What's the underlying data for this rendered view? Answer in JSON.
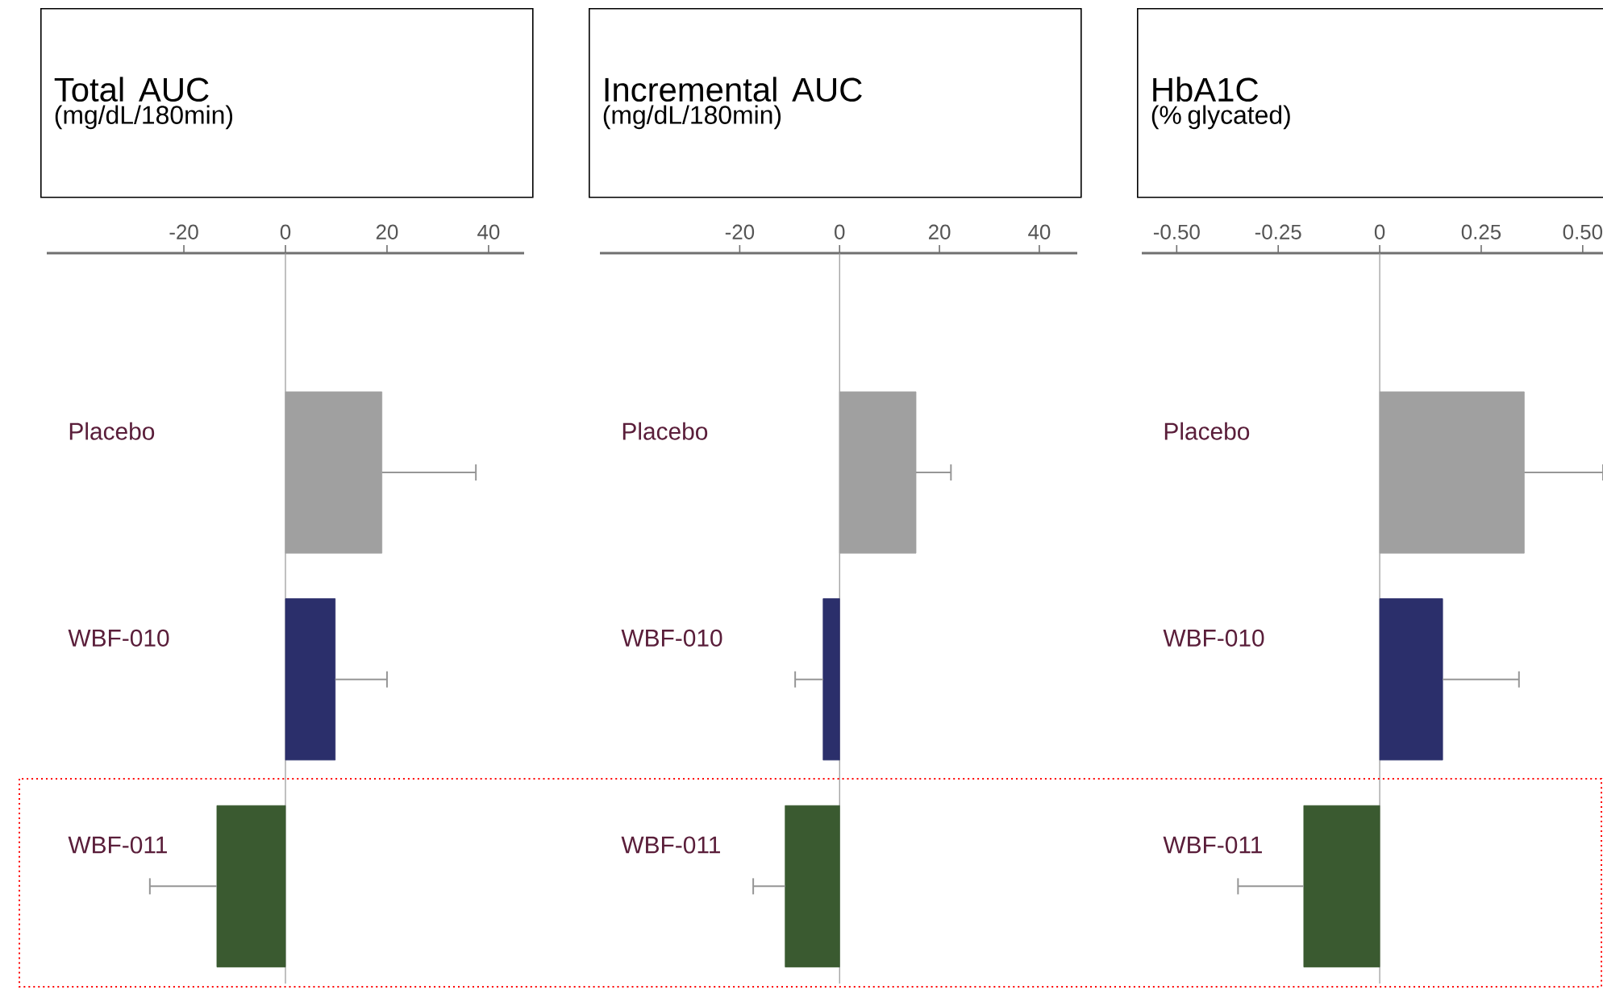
{
  "chart_data": [
    {
      "type": "bar",
      "orientation": "horizontal",
      "title": "Total AUC",
      "subtitle": "(mg/dL/180min)",
      "categories": [
        "Placebo",
        "WBF-010",
        "WBF-011"
      ],
      "values": [
        19,
        9.8,
        -13.5
      ],
      "colors": [
        "#a0a0a0",
        "#2b2f6b",
        "#3a5a30"
      ],
      "errors": [
        [
          19,
          37.5
        ],
        [
          9.8,
          20
        ],
        [
          -26.7,
          -13.5
        ]
      ],
      "xlim": [
        -47,
        47
      ],
      "xticks": [
        -20,
        0,
        20,
        40
      ]
    },
    {
      "type": "bar",
      "orientation": "horizontal",
      "title": "Incremental AUC",
      "subtitle": "(mg/dL/180min)",
      "categories": [
        "Placebo",
        "WBF-010",
        "WBF-011"
      ],
      "values": [
        15.3,
        -3.3,
        -10.9
      ],
      "colors": [
        "#a0a0a0",
        "#2b2f6b",
        "#3a5a30"
      ],
      "errors": [
        [
          15.3,
          22.3
        ],
        [
          -8.9,
          -3.3
        ],
        [
          -17.3,
          -10.9
        ]
      ],
      "xlim": [
        -48,
        47.6
      ],
      "xticks": [
        -20,
        0,
        20,
        40
      ]
    },
    {
      "type": "bar",
      "orientation": "horizontal",
      "title": "HbA1C",
      "subtitle": "(% glycated)",
      "categories": [
        "Placebo",
        "WBF-010",
        "WBF-011"
      ],
      "values": [
        0.356,
        0.155,
        -0.187
      ],
      "colors": [
        "#a0a0a0",
        "#2b2f6b",
        "#3a5a30"
      ],
      "errors": [
        [
          0.356,
          0.55
        ],
        [
          0.155,
          0.343
        ],
        [
          -0.349,
          -0.187
        ]
      ],
      "xlim": [
        -0.586,
        0.55
      ],
      "xticks": [
        {
          "value": -0.5,
          "label": "-0.50"
        },
        {
          "value": -0.25,
          "label": "-0.25"
        },
        0,
        {
          "value": 0.25,
          "label": "0.25"
        },
        {
          "value": 0.5,
          "label": "0.50"
        }
      ]
    }
  ]
}
